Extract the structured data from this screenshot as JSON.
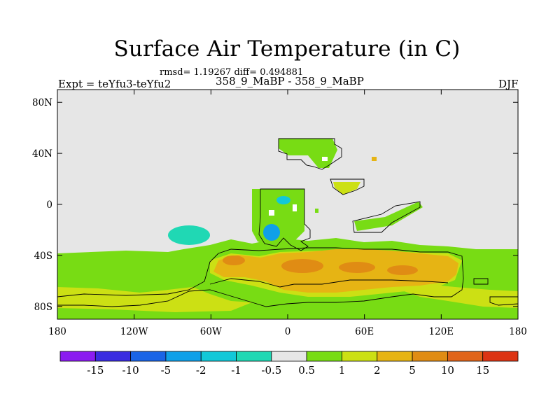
{
  "title": "Surface Air Temperature (in C)",
  "stats_line": "rmsd= 1.19267 diff= 0.494881",
  "left_label": "Expt = teYfu3-teYfu2",
  "center_label": "358_9_MaBP - 358_9_MaBP",
  "right_label": "DJF",
  "map": {
    "projection": "cylindrical equidistant",
    "lon_range": [
      -180,
      180
    ],
    "lat_range": [
      -90,
      90
    ],
    "x_ticks": [
      {
        "lon": -180,
        "label": "180"
      },
      {
        "lon": -120,
        "label": "120W"
      },
      {
        "lon": -60,
        "label": "60W"
      },
      {
        "lon": 0,
        "label": "0"
      },
      {
        "lon": 60,
        "label": "60E"
      },
      {
        "lon": 120,
        "label": "120E"
      },
      {
        "lon": 180,
        "label": "180"
      }
    ],
    "y_ticks": [
      {
        "lat": 80,
        "label": "80N"
      },
      {
        "lat": 40,
        "label": "40N"
      },
      {
        "lat": 0,
        "label": "0"
      },
      {
        "lat": -40,
        "label": "40S"
      },
      {
        "lat": -80,
        "label": "80S"
      }
    ]
  },
  "colorbar": {
    "colors": [
      "#8b1cf0",
      "#3a2ce0",
      "#1a64e6",
      "#10a0e8",
      "#12c8d8",
      "#20d8b4",
      "#e6e6e6",
      "#78dc14",
      "#cce014",
      "#e6b414",
      "#e08c14",
      "#e0641a",
      "#dc3414"
    ],
    "labels": [
      "-15",
      "-10",
      "-5",
      "-2",
      "-1",
      "-0.5",
      "0.5",
      "1",
      "2",
      "5",
      "10",
      "15"
    ]
  },
  "colors": {
    "neutral": "#e6e6e6",
    "green": "#78dc14",
    "yellow_green": "#cce014",
    "gold": "#e6b414",
    "orange": "#e08c14",
    "cyan": "#12c8d8",
    "blue": "#10a0e8"
  }
}
